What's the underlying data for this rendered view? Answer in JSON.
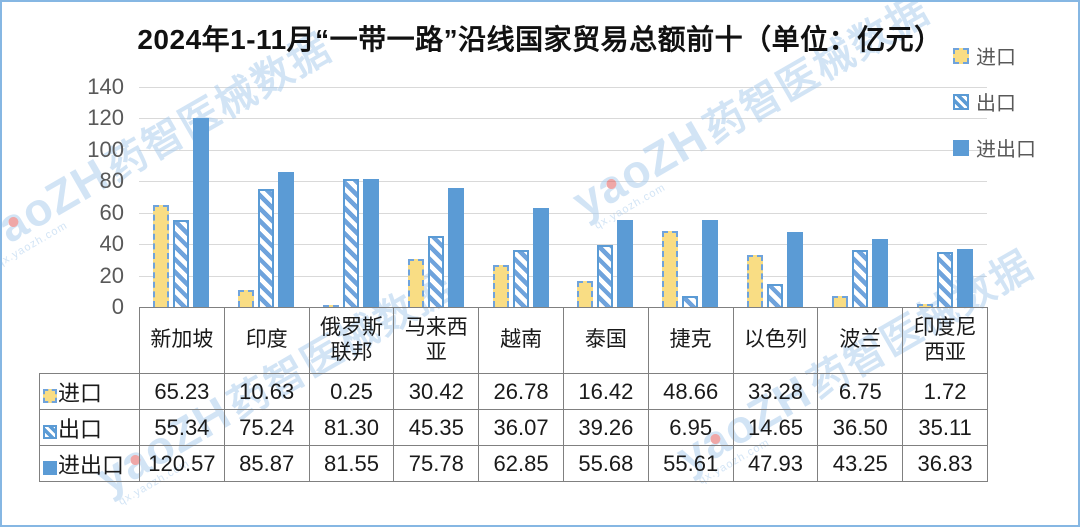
{
  "title": "2024年1-11月“一带一路”沿线国家贸易总额前十（单位：亿元）",
  "legend": [
    {
      "label": "进口",
      "swatch": "dashed-yellow-square"
    },
    {
      "label": "出口",
      "swatch": "blue-hatched-square"
    },
    {
      "label": "进出口",
      "swatch": "solid-blue-square"
    }
  ],
  "watermark": {
    "logo": "yaoZH",
    "cjk": "药智医械数据",
    "sub": "qx.yaozh.com",
    "color": "#A7CAEC",
    "dot_color": "#E05252"
  },
  "colors": {
    "import_fill": "#F9DD84",
    "series_blue": "#5B9BD5",
    "gridline": "#D9D9D9",
    "axis_text": "#595959",
    "table_border": "#808080",
    "frame_border": "#86B7E3"
  },
  "chart_data": {
    "type": "bar",
    "title": "2024年1-11月“一带一路”沿线国家贸易总额前十（单位：亿元）",
    "unit": "亿元",
    "categories": [
      "新加坡",
      "印度",
      "俄罗斯联邦",
      "马来西亚",
      "越南",
      "泰国",
      "捷克",
      "以色列",
      "波兰",
      "印度尼西亚"
    ],
    "series": [
      {
        "name": "进口",
        "values": [
          65.23,
          10.63,
          0.25,
          30.42,
          26.78,
          16.42,
          48.66,
          33.28,
          6.75,
          1.72
        ]
      },
      {
        "name": "出口",
        "values": [
          55.34,
          75.24,
          81.3,
          45.35,
          36.07,
          39.26,
          6.95,
          14.65,
          36.5,
          35.11
        ]
      },
      {
        "name": "进出口",
        "values": [
          120.57,
          85.87,
          81.55,
          75.78,
          62.85,
          55.68,
          55.61,
          47.93,
          43.25,
          36.83
        ]
      }
    ],
    "xlabel": "",
    "ylabel": "",
    "ylim": [
      0,
      140
    ],
    "yticks": [
      0,
      20,
      40,
      60,
      80,
      100,
      120,
      140
    ],
    "grid": true,
    "legend_position": "top-right",
    "data_table": true
  }
}
